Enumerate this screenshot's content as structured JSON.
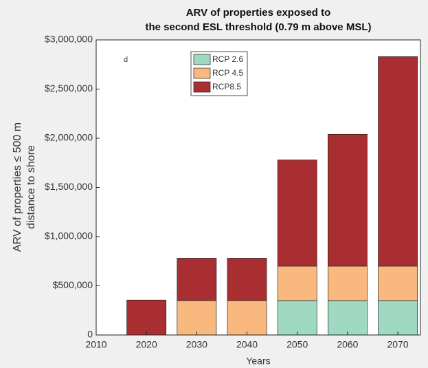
{
  "chart_data": {
    "type": "stacked-bar",
    "title": [
      "ARV of properties exposed to",
      "the second ESL threshold (0.79 m above MSL)"
    ],
    "ylabel": [
      "ARV of properties ≤ 500 m",
      "distance to shore"
    ],
    "xlabel": "Years",
    "annotation": "d",
    "x": [
      2020,
      2030,
      2040,
      2050,
      2060,
      2070
    ],
    "series": [
      {
        "name": "RCP 2.6",
        "color": "#9fd9c2",
        "values": [
          0,
          0,
          0,
          350000,
          350000,
          350000
        ]
      },
      {
        "name": "RCP 4.5",
        "color": "#f9b97e",
        "values": [
          0,
          350000,
          350000,
          350000,
          350000,
          350000
        ]
      },
      {
        "name": "RCP8.5",
        "color": "#a82e31",
        "values": [
          355000,
          430000,
          430000,
          1080000,
          1340000,
          2130000
        ]
      }
    ],
    "xlim": [
      2010,
      2074.5
    ],
    "xticks": [
      2010,
      2020,
      2030,
      2040,
      2050,
      2060,
      2070
    ],
    "ylim": [
      0,
      3000000
    ],
    "yticks": [
      0,
      {
        "value": 500000,
        "label": "$500,000"
      },
      {
        "value": 1000000,
        "label": "$1,000,000"
      },
      {
        "value": 1500000,
        "label": "$1,500,000"
      },
      {
        "value": 2000000,
        "label": "$2,000,000"
      },
      {
        "value": 2500000,
        "label": "$2,500,000"
      },
      {
        "value": 3000000,
        "label": "$3,000,000"
      }
    ],
    "legend": "top-center"
  }
}
